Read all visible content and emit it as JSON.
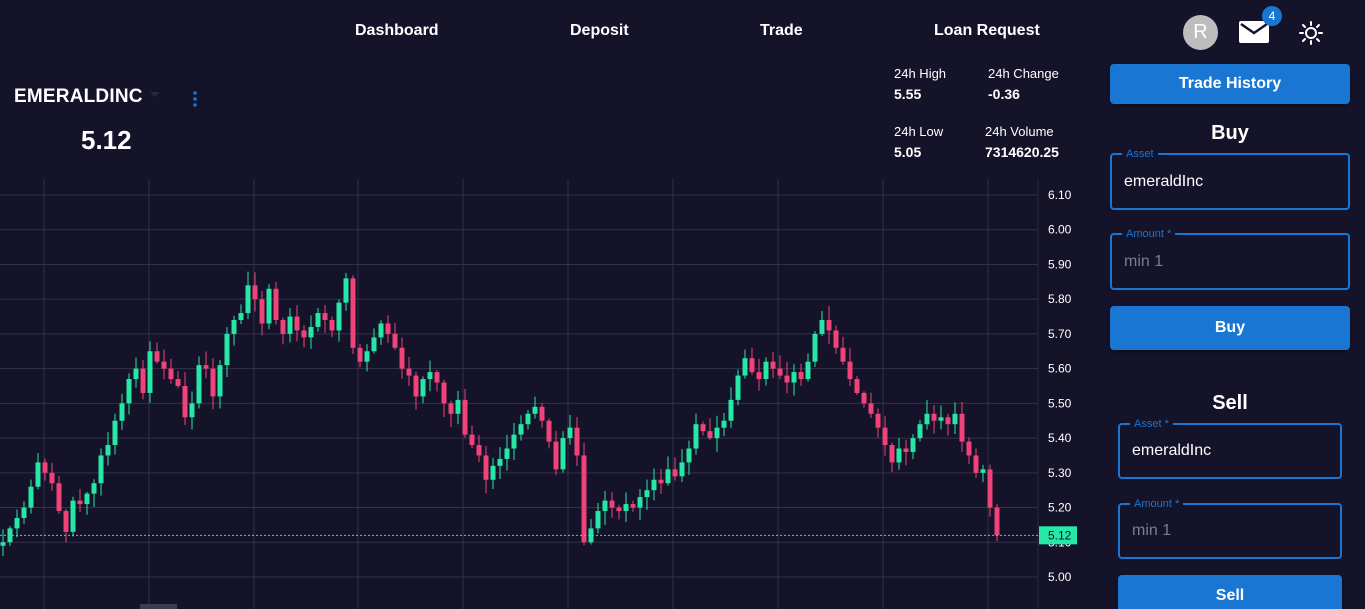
{
  "nav": {
    "items": [
      "Dashboard",
      "Deposit",
      "Trade",
      "Loan Request"
    ]
  },
  "user": {
    "avatar_letter": "R",
    "mail_count": "4"
  },
  "icons": {
    "mail": "mail-icon",
    "theme": "sun-icon",
    "more": "more-vertical-icon",
    "caret": "caret-down-icon"
  },
  "ticker": {
    "name": "EMERALDINC",
    "price": "5.12",
    "stats": {
      "high_label": "24h High",
      "high_value": "5.55",
      "change_label": "24h Change",
      "change_value": "-0.36",
      "low_label": "24h Low",
      "low_value": "5.05",
      "volume_label": "24h Volume",
      "volume_value": "7314620.25"
    }
  },
  "colors": {
    "up": "#26e7a6",
    "down": "#f0437a",
    "accent": "#1976d2",
    "background": "#15132a",
    "grid": "#34324a"
  },
  "chart_data": {
    "type": "candlestick",
    "y_ticks": [
      "6.10",
      "6.00",
      "5.90",
      "5.80",
      "5.70",
      "5.60",
      "5.50",
      "5.40",
      "5.30",
      "5.20",
      "5.10",
      "5.00"
    ],
    "ylim": [
      4.95,
      6.15
    ],
    "last_price_label": "5.12",
    "grid": true,
    "closes": [
      5.1,
      5.14,
      5.17,
      5.2,
      5.26,
      5.33,
      5.3,
      5.27,
      5.19,
      5.13,
      5.22,
      5.21,
      5.24,
      5.27,
      5.35,
      5.38,
      5.45,
      5.5,
      5.57,
      5.6,
      5.53,
      5.65,
      5.62,
      5.6,
      5.57,
      5.55,
      5.46,
      5.5,
      5.61,
      5.6,
      5.52,
      5.61,
      5.7,
      5.74,
      5.76,
      5.84,
      5.8,
      5.73,
      5.83,
      5.74,
      5.7,
      5.75,
      5.71,
      5.69,
      5.72,
      5.76,
      5.74,
      5.71,
      5.79,
      5.86,
      5.66,
      5.62,
      5.65,
      5.69,
      5.73,
      5.7,
      5.66,
      5.6,
      5.58,
      5.52,
      5.57,
      5.59,
      5.56,
      5.5,
      5.47,
      5.51,
      5.41,
      5.38,
      5.35,
      5.28,
      5.32,
      5.34,
      5.37,
      5.41,
      5.44,
      5.47,
      5.49,
      5.45,
      5.39,
      5.31,
      5.4,
      5.43,
      5.35,
      5.1,
      5.14,
      5.19,
      5.22,
      5.2,
      5.19,
      5.21,
      5.2,
      5.23,
      5.25,
      5.28,
      5.27,
      5.31,
      5.29,
      5.33,
      5.37,
      5.44,
      5.42,
      5.4,
      5.43,
      5.45,
      5.51,
      5.58,
      5.63,
      5.59,
      5.57,
      5.62,
      5.6,
      5.58,
      5.56,
      5.59,
      5.57,
      5.62,
      5.7,
      5.74,
      5.71,
      5.66,
      5.62,
      5.57,
      5.53,
      5.5,
      5.47,
      5.43,
      5.38,
      5.33,
      5.37,
      5.36,
      5.4,
      5.44,
      5.47,
      5.45,
      5.46,
      5.44,
      5.47,
      5.39,
      5.35,
      5.3,
      5.31,
      5.2,
      5.12
    ]
  },
  "trade_panel": {
    "history_button": "Trade History",
    "buy": {
      "title": "Buy",
      "asset_label": "Asset",
      "asset_value": "emeraldInc",
      "amount_label": "Amount *",
      "amount_placeholder": "min 1",
      "button": "Buy"
    },
    "sell": {
      "title": "Sell",
      "asset_label": "Asset *",
      "asset_value": "emeraldInc",
      "amount_label": "Amount *",
      "amount_placeholder": "min 1",
      "button": "Sell"
    }
  }
}
